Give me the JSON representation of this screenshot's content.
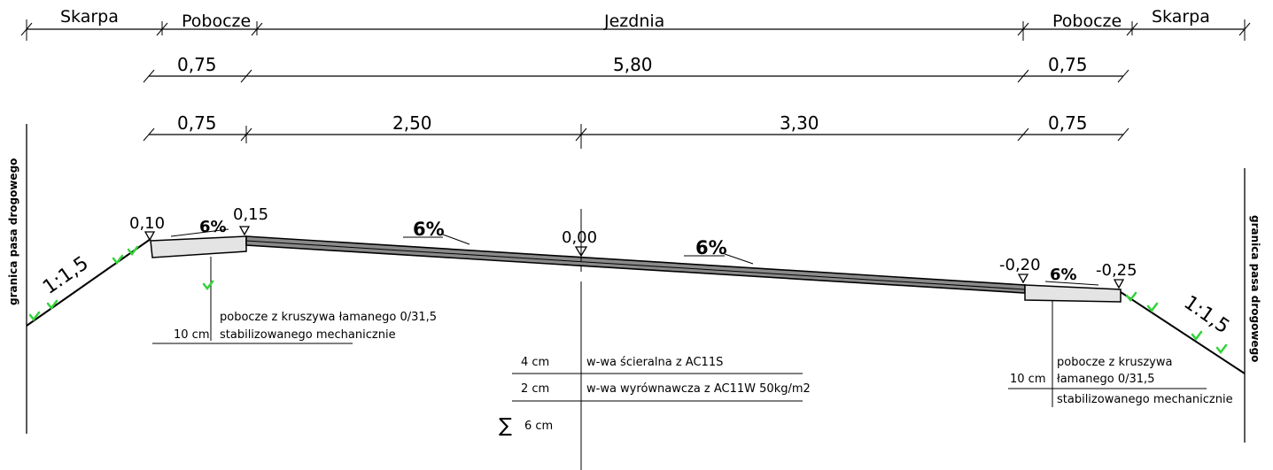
{
  "sections": {
    "skarpa_left": "Skarpa",
    "pobocze_left": "Pobocze",
    "jezdnia": "Jezdnia",
    "pobocze_right": "Pobocze",
    "skarpa_right": "Skarpa"
  },
  "dims_row1": {
    "left": "0,75",
    "center": "5,80",
    "right": "0,75"
  },
  "dims_row2": {
    "left": "0,75",
    "center_left": "2,50",
    "center_right": "3,30",
    "right": "0,75"
  },
  "boundary_label": "granica pasa drogowego",
  "slopes": {
    "left": "1:1,5",
    "right": "1:1,5"
  },
  "grades": {
    "shoulder_left": "6%",
    "road_left": "6%",
    "road_right": "6%",
    "shoulder_right": "6%"
  },
  "elevations": {
    "left_outer": "0,10",
    "left_edge": "0,15",
    "axis": "0,00",
    "right_edge": "-0,20",
    "right_outer": "-0,25"
  },
  "notes": {
    "left_shoulder": {
      "line1": "pobocze z kruszywa łamanego 0/31,5",
      "thickness": "10 cm",
      "line2": "stabilizowanego mechanicznie"
    },
    "layers": [
      {
        "thickness": "4 cm",
        "description": "w-wa ścieralna z AC11S"
      },
      {
        "thickness": "2 cm",
        "description": "w-wa wyrównawcza z AC11W 50kg/m2"
      }
    ],
    "total_symbol": "∑",
    "total": "6 cm",
    "right_shoulder": {
      "line1": "pobocze z kruszywa",
      "thickness": "10 cm",
      "line2": "łamanego 0/31,5",
      "line3": "stabilizowanego mechanicznie"
    }
  }
}
